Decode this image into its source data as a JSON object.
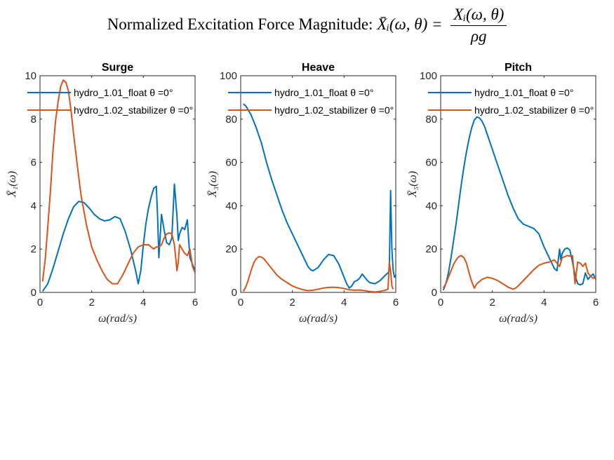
{
  "figure_title": {
    "prefix": "Normalized Excitation Force Magnitude:",
    "lhs": "X̄ᵢ(ω, θ) =",
    "numerator": "Xᵢ(ω, θ)",
    "denominator": "ρg"
  },
  "colors": {
    "float": "#0072BD",
    "stabilizer": "#D95319",
    "axes": "#262626"
  },
  "chart_data": [
    {
      "type": "line",
      "title": "Surge",
      "xlabel": "ω(rad/s)",
      "ylabel": "X̄₁(ω)",
      "xlim": [
        0,
        6
      ],
      "ylim": [
        0,
        10
      ],
      "xticks": [
        0,
        2,
        4,
        6
      ],
      "yticks": [
        0,
        2,
        4,
        6,
        8,
        10
      ],
      "grid": false,
      "legend_position": "top-left",
      "series": [
        {
          "name": "hydro_1.01_float θ =0°",
          "x": [
            0.1,
            0.3,
            0.5,
            0.7,
            0.9,
            1.1,
            1.3,
            1.5,
            1.7,
            1.9,
            2.1,
            2.3,
            2.5,
            2.7,
            2.9,
            3.1,
            3.3,
            3.5,
            3.7,
            3.8,
            3.9,
            4.0,
            4.1,
            4.2,
            4.3,
            4.4,
            4.5,
            4.55,
            4.6,
            4.7,
            4.8,
            4.9,
            5.0,
            5.1,
            5.2,
            5.3,
            5.35,
            5.4,
            5.5,
            5.6,
            5.7,
            5.8,
            5.9,
            6.0
          ],
          "values": [
            0.05,
            0.4,
            1.1,
            1.9,
            2.7,
            3.4,
            3.95,
            4.2,
            4.15,
            3.9,
            3.6,
            3.4,
            3.3,
            3.35,
            3.5,
            3.4,
            2.8,
            2.0,
            1.0,
            0.4,
            1.0,
            2.2,
            3.2,
            3.9,
            4.4,
            4.8,
            4.9,
            3.5,
            1.6,
            3.6,
            2.9,
            2.3,
            2.2,
            2.5,
            5.0,
            3.5,
            2.4,
            2.7,
            3.0,
            2.9,
            3.35,
            1.6,
            1.3,
            1.0
          ]
        },
        {
          "name": "hydro_1.02_stabilizer θ =0°",
          "x": [
            0.1,
            0.2,
            0.3,
            0.4,
            0.5,
            0.6,
            0.7,
            0.8,
            0.9,
            1.0,
            1.1,
            1.2,
            1.3,
            1.4,
            1.5,
            1.6,
            1.8,
            2.0,
            2.2,
            2.4,
            2.6,
            2.8,
            3.0,
            3.1,
            3.2,
            3.4,
            3.6,
            3.8,
            4.0,
            4.2,
            4.4,
            4.5,
            4.6,
            4.7,
            4.8,
            4.9,
            5.0,
            5.1,
            5.2,
            5.3,
            5.35,
            5.4,
            5.5,
            5.6,
            5.7,
            5.8,
            5.9,
            6.0
          ],
          "values": [
            0.5,
            1.5,
            3.0,
            4.6,
            6.5,
            7.9,
            8.8,
            9.5,
            9.8,
            9.7,
            9.3,
            8.4,
            7.3,
            6.3,
            5.3,
            4.4,
            3.1,
            2.1,
            1.5,
            1.0,
            0.6,
            0.4,
            0.4,
            0.6,
            0.8,
            1.3,
            1.8,
            2.1,
            2.2,
            2.2,
            2.0,
            2.1,
            2.1,
            2.2,
            2.5,
            2.7,
            2.75,
            2.7,
            2.2,
            1.0,
            1.4,
            2.2,
            2.0,
            1.8,
            1.7,
            2.0,
            1.2,
            0.9
          ]
        }
      ]
    },
    {
      "type": "line",
      "title": "Heave",
      "xlabel": "ω(rad/s)",
      "ylabel": "X̄₃(ω)",
      "xlim": [
        0,
        6
      ],
      "ylim": [
        0,
        100
      ],
      "xticks": [
        0,
        2,
        4,
        6
      ],
      "yticks": [
        0,
        20,
        40,
        60,
        80,
        100
      ],
      "grid": false,
      "legend_position": "top-left",
      "series": [
        {
          "name": "hydro_1.01_float θ =0°",
          "x": [
            0.1,
            0.2,
            0.3,
            0.4,
            0.5,
            0.6,
            0.8,
            1.0,
            1.2,
            1.4,
            1.6,
            1.8,
            2.0,
            2.2,
            2.4,
            2.6,
            2.7,
            2.8,
            3.0,
            3.2,
            3.4,
            3.6,
            3.8,
            4.0,
            4.1,
            4.2,
            4.3,
            4.4,
            4.5,
            4.6,
            4.7,
            4.8,
            4.9,
            5.0,
            5.2,
            5.4,
            5.6,
            5.7,
            5.75,
            5.8,
            5.85,
            5.9,
            5.95,
            6.0
          ],
          "values": [
            87,
            86,
            84,
            82,
            79,
            76,
            69,
            60,
            52,
            45,
            38,
            32,
            27,
            22,
            17,
            12,
            10.5,
            10,
            11.5,
            15,
            17.5,
            17,
            13,
            7,
            4,
            2,
            3,
            5,
            5.5,
            6.5,
            8.5,
            7,
            5.5,
            4.5,
            4,
            5.5,
            8,
            9,
            10,
            47,
            20,
            10,
            7,
            8
          ]
        },
        {
          "name": "hydro_1.02_stabilizer θ =0°",
          "x": [
            0.1,
            0.2,
            0.3,
            0.4,
            0.5,
            0.6,
            0.7,
            0.8,
            0.9,
            1.0,
            1.2,
            1.4,
            1.6,
            1.8,
            2.0,
            2.2,
            2.4,
            2.6,
            2.8,
            3.0,
            3.2,
            3.4,
            3.6,
            3.8,
            4.0,
            4.2,
            4.4,
            4.6,
            4.8,
            5.0,
            5.2,
            5.4,
            5.6,
            5.7,
            5.75,
            5.8,
            5.85,
            5.9
          ],
          "values": [
            0.5,
            2.5,
            6,
            10,
            13.5,
            15.5,
            16.5,
            16.3,
            15.5,
            14,
            11,
            8,
            6,
            4.5,
            3,
            2,
            1.3,
            0.8,
            1,
            1.5,
            2,
            2.3,
            2.4,
            2.2,
            1.8,
            1.2,
            1,
            1.1,
            0.8,
            0.4,
            0.2,
            0.5,
            1,
            1.5,
            14,
            10,
            3,
            1.5
          ]
        }
      ]
    },
    {
      "type": "line",
      "title": "Pitch",
      "xlabel": "ω(rad/s)",
      "ylabel": "X̄₅(ω)",
      "xlim": [
        0,
        6
      ],
      "ylim": [
        0,
        100
      ],
      "xticks": [
        0,
        2,
        4,
        6
      ],
      "yticks": [
        0,
        20,
        40,
        60,
        80,
        100
      ],
      "grid": false,
      "legend_position": "top-left",
      "series": [
        {
          "name": "hydro_1.01_float θ =0°",
          "x": [
            0.1,
            0.2,
            0.3,
            0.4,
            0.5,
            0.6,
            0.7,
            0.8,
            0.9,
            1.0,
            1.1,
            1.2,
            1.3,
            1.4,
            1.5,
            1.6,
            1.7,
            1.8,
            2.0,
            2.2,
            2.4,
            2.6,
            2.8,
            3.0,
            3.2,
            3.4,
            3.6,
            3.8,
            4.0,
            4.2,
            4.4,
            4.5,
            4.6,
            4.65,
            4.7,
            4.8,
            4.9,
            5.0,
            5.1,
            5.2,
            5.3,
            5.4,
            5.5,
            5.6,
            5.7,
            5.8,
            5.9,
            6.0
          ],
          "values": [
            1,
            4,
            9,
            16,
            24,
            32,
            41,
            50,
            58,
            65,
            71,
            76,
            79.5,
            81,
            80.5,
            79,
            76.5,
            73,
            66,
            59,
            52,
            45,
            39,
            34,
            31.5,
            30.5,
            29.5,
            27,
            21,
            16,
            11,
            10,
            20,
            15,
            18,
            20,
            20.5,
            19.5,
            14,
            8,
            4,
            3.5,
            4,
            9,
            6,
            7.5,
            8.5,
            6
          ]
        },
        {
          "name": "hydro_1.02_stabilizer θ =0°",
          "x": [
            0.1,
            0.2,
            0.3,
            0.4,
            0.5,
            0.6,
            0.7,
            0.8,
            0.9,
            1.0,
            1.1,
            1.2,
            1.3,
            1.4,
            1.6,
            1.8,
            2.0,
            2.2,
            2.4,
            2.6,
            2.8,
            2.9,
            3.0,
            3.2,
            3.4,
            3.6,
            3.8,
            4.0,
            4.2,
            4.4,
            4.6,
            4.7,
            4.8,
            4.9,
            5.0,
            5.1,
            5.2,
            5.3,
            5.4,
            5.5,
            5.6,
            5.7,
            5.8,
            5.9,
            6.0
          ],
          "values": [
            2,
            4,
            7,
            10,
            13,
            15,
            16.5,
            17,
            16,
            13.5,
            9,
            5,
            2,
            4,
            6,
            7,
            6.5,
            5.5,
            4,
            2.5,
            1.5,
            2,
            3,
            5.5,
            8,
            10.5,
            12.5,
            13.5,
            14,
            15,
            12,
            16,
            16.5,
            17,
            16.8,
            17,
            4,
            14,
            13.5,
            12,
            13.5,
            9,
            7.5,
            6.5,
            7
          ]
        }
      ]
    }
  ]
}
